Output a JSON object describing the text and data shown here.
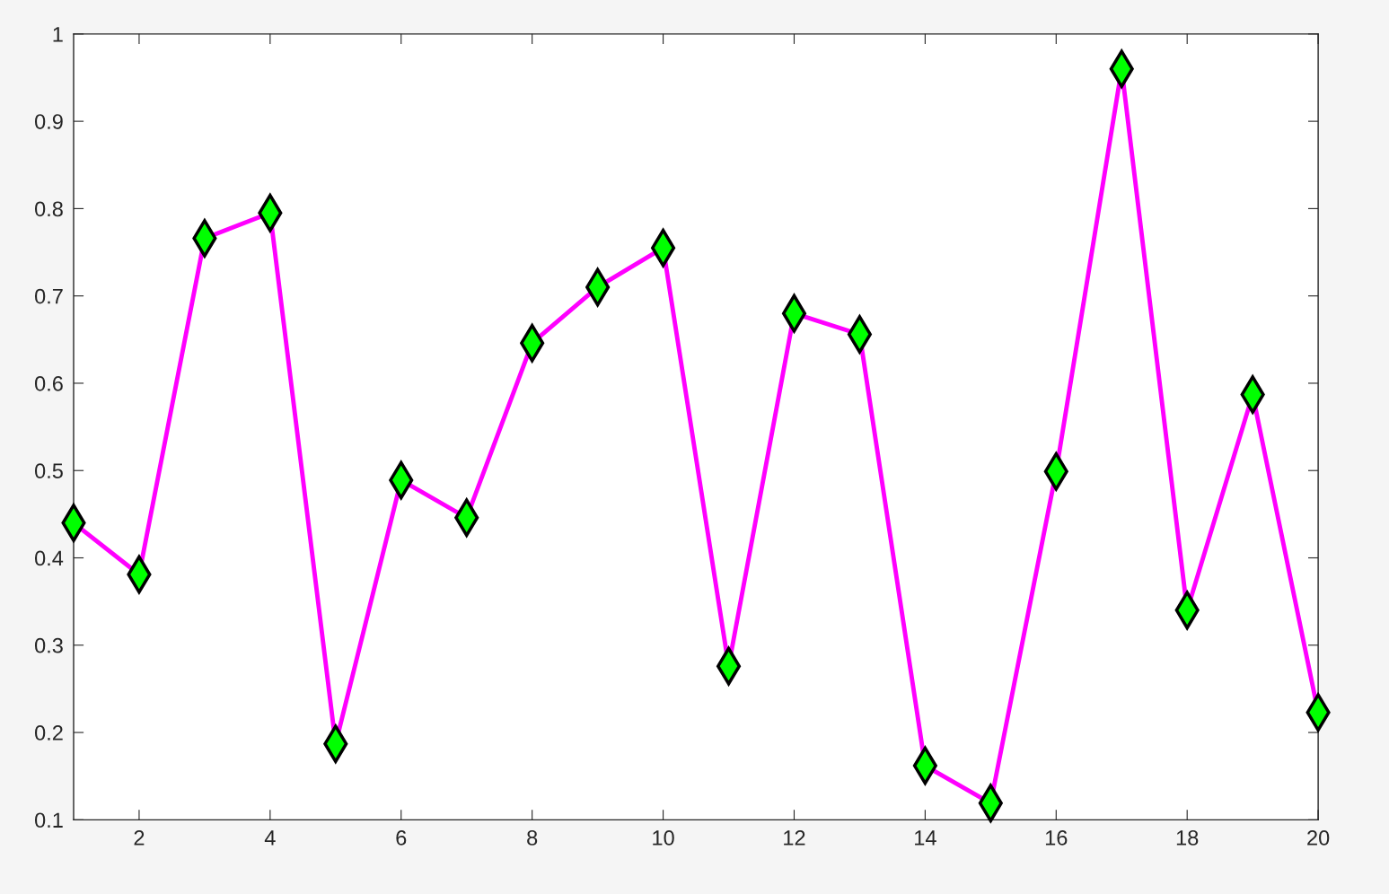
{
  "chart_data": {
    "type": "line",
    "x": [
      1,
      2,
      3,
      4,
      5,
      6,
      7,
      8,
      9,
      10,
      11,
      12,
      13,
      14,
      15,
      16,
      17,
      18,
      19,
      20
    ],
    "series": [
      {
        "color": "#ff00ff",
        "values": [
          0.44,
          0.381,
          0.766,
          0.795,
          0.187,
          0.489,
          0.446,
          0.646,
          0.71,
          0.755,
          0.276,
          0.68,
          0.656,
          0.162,
          0.119,
          0.499,
          0.96,
          0.34,
          0.587,
          0.223
        ]
      }
    ],
    "xlim": [
      1,
      20
    ],
    "xticks": [
      2,
      4,
      6,
      8,
      10,
      12,
      14,
      16,
      18,
      20
    ],
    "ylim": [
      0.1,
      1
    ],
    "yticks": [
      0.1,
      0.2,
      0.3,
      0.4,
      0.5,
      0.6,
      0.7,
      0.8,
      0.9,
      1
    ],
    "marker": "diamond",
    "line_style": "solid",
    "grid": false,
    "legend": false
  }
}
